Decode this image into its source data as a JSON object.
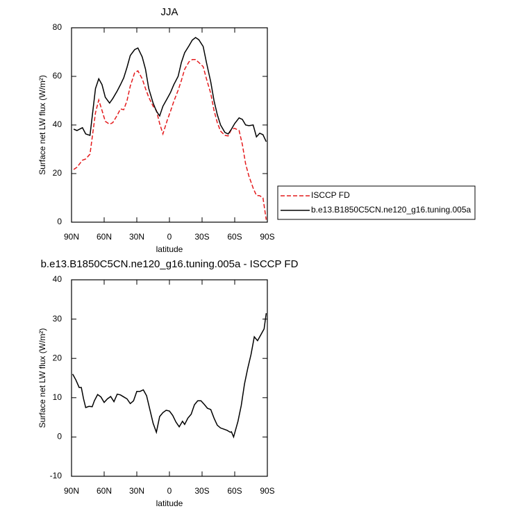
{
  "chart_data": [
    {
      "type": "line",
      "title": "JJA",
      "x_label": "latitude",
      "y_label": "Surface net LW flux (W/m²)",
      "x": [
        88,
        85,
        80,
        77,
        73,
        68,
        65,
        62,
        59,
        55,
        52,
        48,
        45,
        42,
        39,
        36,
        32,
        29,
        25,
        22,
        19,
        15,
        12,
        9,
        6,
        2,
        -1,
        -4,
        -8,
        -11,
        -14,
        -18,
        -21,
        -24,
        -27,
        -31,
        -34,
        -38,
        -41,
        -44,
        -47,
        -51,
        -54,
        -57,
        -60,
        -64,
        -67,
        -70,
        -73,
        -77,
        -80,
        -83,
        -86,
        -89
      ],
      "xlim": [
        90,
        -90
      ],
      "xticks": [
        {
          "value": 90,
          "label": "90N"
        },
        {
          "value": 60,
          "label": "60N"
        },
        {
          "value": 30,
          "label": "30N"
        },
        0,
        {
          "value": -30,
          "label": "30S"
        },
        {
          "value": -60,
          "label": "60S"
        },
        {
          "value": -90,
          "label": "90S"
        }
      ],
      "ylim": [
        0,
        80
      ],
      "yticks": [
        0,
        20,
        40,
        60,
        80
      ],
      "legend": "right",
      "series": [
        {
          "name": "ISCCP FD",
          "color": "#e41a1c",
          "line_style": "dashed",
          "values": [
            21.7,
            22.6,
            25.5,
            26,
            28,
            45,
            50.3,
            46,
            41.5,
            40.3,
            41,
            44,
            46.6,
            46.3,
            50,
            56,
            61.5,
            62.3,
            59,
            55,
            51.4,
            47.7,
            46,
            40.6,
            36.3,
            42,
            45.7,
            49.7,
            54.3,
            58.3,
            62.9,
            66,
            66.9,
            66.9,
            65.7,
            64,
            59,
            53,
            46,
            41,
            37.5,
            35.7,
            35.5,
            38.3,
            38.6,
            37.7,
            32,
            24,
            19,
            14,
            11,
            10.9,
            10,
            1
          ]
        },
        {
          "name": "b.e13.B1850C5CN.ne120_g16.tuning.005a",
          "color": "#000000",
          "line_style": "solid",
          "values": [
            38.3,
            37.7,
            38.9,
            36.3,
            35.7,
            55,
            59,
            56.6,
            51.4,
            49,
            50.9,
            54,
            56.6,
            59.4,
            63.7,
            68.6,
            71,
            71.7,
            68,
            63,
            55,
            49,
            45.7,
            43.7,
            47.7,
            50.9,
            53.4,
            56.6,
            60,
            65.7,
            69.7,
            72.6,
            74.9,
            76,
            75.1,
            72.3,
            65.7,
            57.7,
            50,
            44.3,
            40,
            36.9,
            36.3,
            38.3,
            40.6,
            42.9,
            42.3,
            40,
            39.7,
            40,
            35.1,
            36.6,
            36,
            33.1
          ]
        }
      ]
    },
    {
      "type": "line",
      "title": "b.e13.B1850C5CN.ne120_g16.tuning.005a - ISCCP FD",
      "x_label": "latitude",
      "y_label": "Surface net LW flux (W/m²)",
      "x": [
        89,
        86,
        83,
        81,
        79,
        77,
        74,
        71,
        69,
        66,
        63,
        60,
        57,
        54,
        51,
        48,
        45,
        42,
        39,
        36,
        33,
        30,
        27,
        24,
        21,
        18,
        15,
        12,
        9,
        6,
        3,
        0,
        -3,
        -6,
        -9,
        -12,
        -14,
        -17,
        -20,
        -23,
        -26,
        -29,
        -32,
        -35,
        -38,
        -41,
        -44,
        -47,
        -50,
        -53,
        -56,
        -57,
        -59,
        -63,
        -66,
        -69,
        -72,
        -75,
        -78,
        -81,
        -84,
        -87,
        -89
      ],
      "xlim": [
        90,
        -90
      ],
      "xticks": [
        {
          "value": 90,
          "label": "90N"
        },
        {
          "value": 60,
          "label": "60N"
        },
        {
          "value": 30,
          "label": "30N"
        },
        0,
        {
          "value": -30,
          "label": "30S"
        },
        {
          "value": -60,
          "label": "60S"
        },
        {
          "value": -90,
          "label": "90S"
        }
      ],
      "ylim": [
        -10,
        40
      ],
      "yticks": [
        -10,
        0,
        10,
        20,
        30,
        40
      ],
      "series": [
        {
          "color": "#000000",
          "line_style": "solid",
          "values": [
            16,
            14.5,
            12.6,
            12.6,
            9.8,
            7.5,
            7.8,
            7.7,
            9.2,
            10.8,
            10.2,
            8.8,
            9.7,
            10.3,
            9,
            10.9,
            10.7,
            10.2,
            9.7,
            8.5,
            9.2,
            11.6,
            11.6,
            12,
            10.5,
            7,
            3.5,
            1.2,
            5.2,
            6.2,
            6.8,
            6.6,
            5.5,
            3.8,
            2.6,
            4,
            3.2,
            4.8,
            5.8,
            8.2,
            9.2,
            9.2,
            8.3,
            7.3,
            7,
            4.8,
            3,
            2.3,
            2,
            1.7,
            1.2,
            1.3,
            0,
            4,
            8,
            13.5,
            17.5,
            21,
            25.5,
            24.5,
            26,
            27.5,
            31.5
          ]
        }
      ]
    }
  ]
}
